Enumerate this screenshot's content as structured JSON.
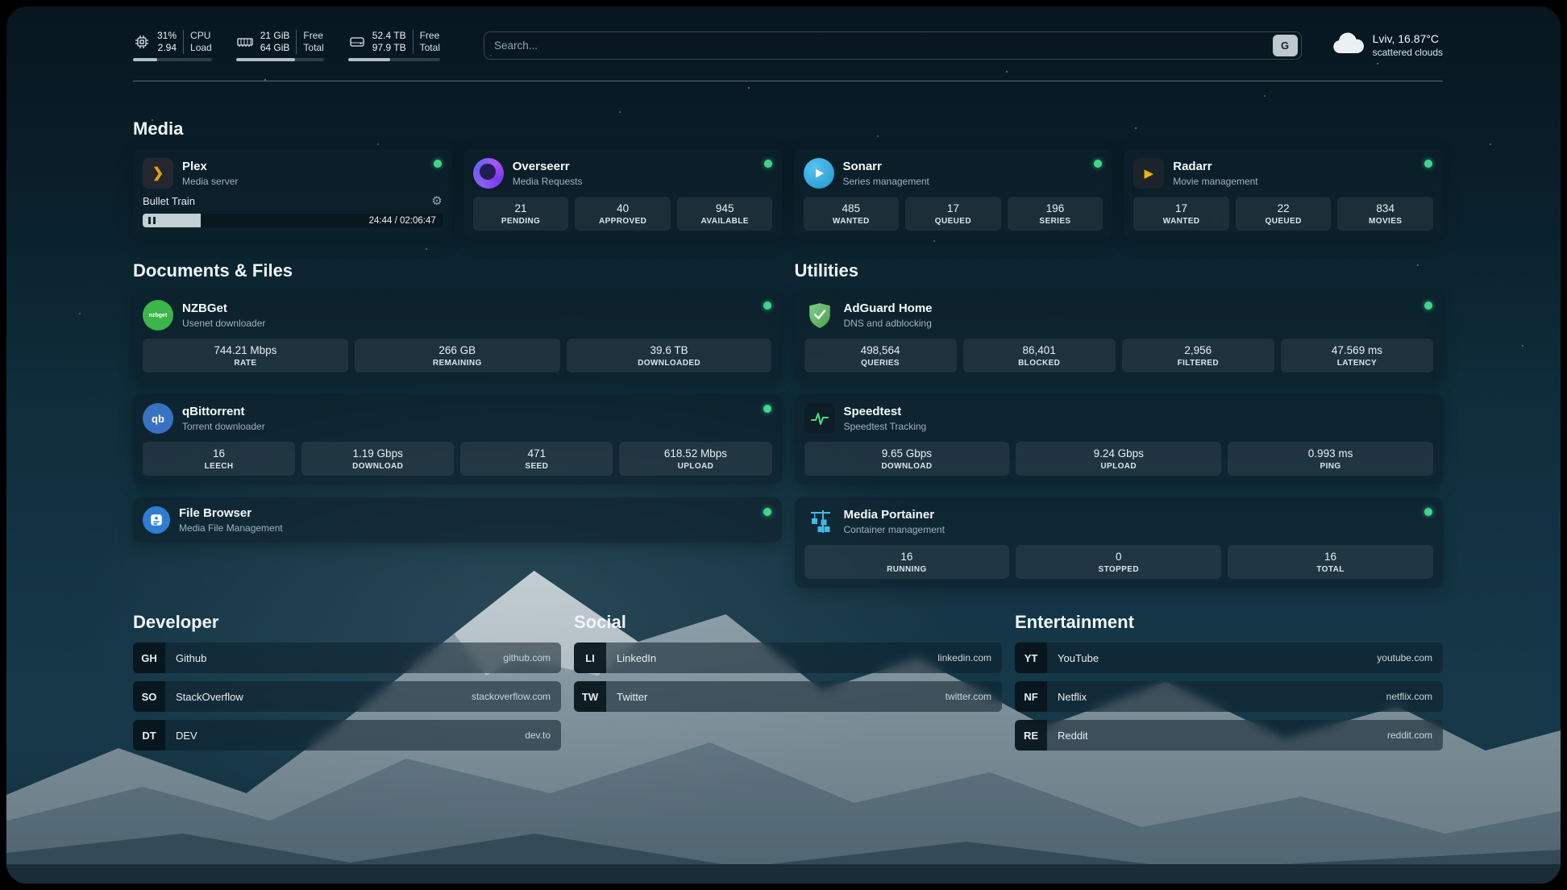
{
  "header": {
    "resources": {
      "cpu": {
        "value1": "31%",
        "value2": "2.94",
        "label1": "CPU",
        "label2": "Load",
        "percent": 31
      },
      "memory": {
        "value1": "21 GiB",
        "value2": "64 GiB",
        "label1": "Free",
        "label2": "Total",
        "percent": 67
      },
      "disk": {
        "value1": "52.4 TB",
        "value2": "97.9 TB",
        "label1": "Free",
        "label2": "Total",
        "percent": 46
      }
    },
    "search": {
      "placeholder": "Search...",
      "engine": "G"
    },
    "weather": {
      "location": "Lviv, 16.87°C",
      "condition": "scattered clouds"
    }
  },
  "sections": {
    "media": "Media",
    "documents": "Documents & Files",
    "utilities": "Utilities",
    "developer": "Developer",
    "social": "Social",
    "entertainment": "Entertainment"
  },
  "apps": {
    "plex": {
      "name": "Plex",
      "subtitle": "Media server",
      "now_playing": "Bullet Train",
      "time": "24:44 / 02:06:47",
      "progress_percent": 19.5
    },
    "overseerr": {
      "name": "Overseerr",
      "subtitle": "Media Requests",
      "stats": [
        {
          "value": "21",
          "label": "PENDING"
        },
        {
          "value": "40",
          "label": "APPROVED"
        },
        {
          "value": "945",
          "label": "AVAILABLE"
        }
      ]
    },
    "sonarr": {
      "name": "Sonarr",
      "subtitle": "Series management",
      "stats": [
        {
          "value": "485",
          "label": "WANTED"
        },
        {
          "value": "17",
          "label": "QUEUED"
        },
        {
          "value": "196",
          "label": "SERIES"
        }
      ]
    },
    "radarr": {
      "name": "Radarr",
      "subtitle": "Movie management",
      "stats": [
        {
          "value": "17",
          "label": "WANTED"
        },
        {
          "value": "22",
          "label": "QUEUED"
        },
        {
          "value": "834",
          "label": "MOVIES"
        }
      ]
    },
    "nzbget": {
      "name": "NZBGet",
      "subtitle": "Usenet downloader",
      "stats": [
        {
          "value": "744.21 Mbps",
          "label": "RATE"
        },
        {
          "value": "266 GB",
          "label": "REMAINING"
        },
        {
          "value": "39.6 TB",
          "label": "DOWNLOADED"
        }
      ]
    },
    "qbittorrent": {
      "name": "qBittorrent",
      "subtitle": "Torrent downloader",
      "stats": [
        {
          "value": "16",
          "label": "LEECH"
        },
        {
          "value": "1.19 Gbps",
          "label": "DOWNLOAD"
        },
        {
          "value": "471",
          "label": "SEED"
        },
        {
          "value": "618.52 Mbps",
          "label": "UPLOAD"
        }
      ]
    },
    "filebrowser": {
      "name": "File Browser",
      "subtitle": "Media File Management"
    },
    "adguard": {
      "name": "AdGuard Home",
      "subtitle": "DNS and adblocking",
      "stats": [
        {
          "value": "498,564",
          "label": "QUERIES"
        },
        {
          "value": "86,401",
          "label": "BLOCKED"
        },
        {
          "value": "2,956",
          "label": "FILTERED"
        },
        {
          "value": "47.569 ms",
          "label": "LATENCY"
        }
      ]
    },
    "speedtest": {
      "name": "Speedtest",
      "subtitle": "Speedtest Tracking",
      "stats": [
        {
          "value": "9.65 Gbps",
          "label": "DOWNLOAD"
        },
        {
          "value": "9.24 Gbps",
          "label": "UPLOAD"
        },
        {
          "value": "0.993 ms",
          "label": "PING"
        }
      ]
    },
    "portainer": {
      "name": "Media Portainer",
      "subtitle": "Container management",
      "stats": [
        {
          "value": "16",
          "label": "RUNNING"
        },
        {
          "value": "0",
          "label": "STOPPED"
        },
        {
          "value": "16",
          "label": "TOTAL"
        }
      ]
    }
  },
  "bookmarks": {
    "developer": [
      {
        "abbr": "GH",
        "name": "Github",
        "url": "github.com"
      },
      {
        "abbr": "SO",
        "name": "StackOverflow",
        "url": "stackoverflow.com"
      },
      {
        "abbr": "DT",
        "name": "DEV",
        "url": "dev.to"
      }
    ],
    "social": [
      {
        "abbr": "LI",
        "name": "LinkedIn",
        "url": "linkedin.com"
      },
      {
        "abbr": "TW",
        "name": "Twitter",
        "url": "twitter.com"
      }
    ],
    "entertainment": [
      {
        "abbr": "YT",
        "name": "YouTube",
        "url": "youtube.com"
      },
      {
        "abbr": "NF",
        "name": "Netflix",
        "url": "netflix.com"
      },
      {
        "abbr": "RE",
        "name": "Reddit",
        "url": "reddit.com"
      }
    ]
  },
  "icons": {
    "gear": "⚙",
    "plex_glyph": "❯",
    "radarr_glyph": "▶",
    "qbittorrent_text": "qb",
    "nzbget_text": "nzbget"
  }
}
